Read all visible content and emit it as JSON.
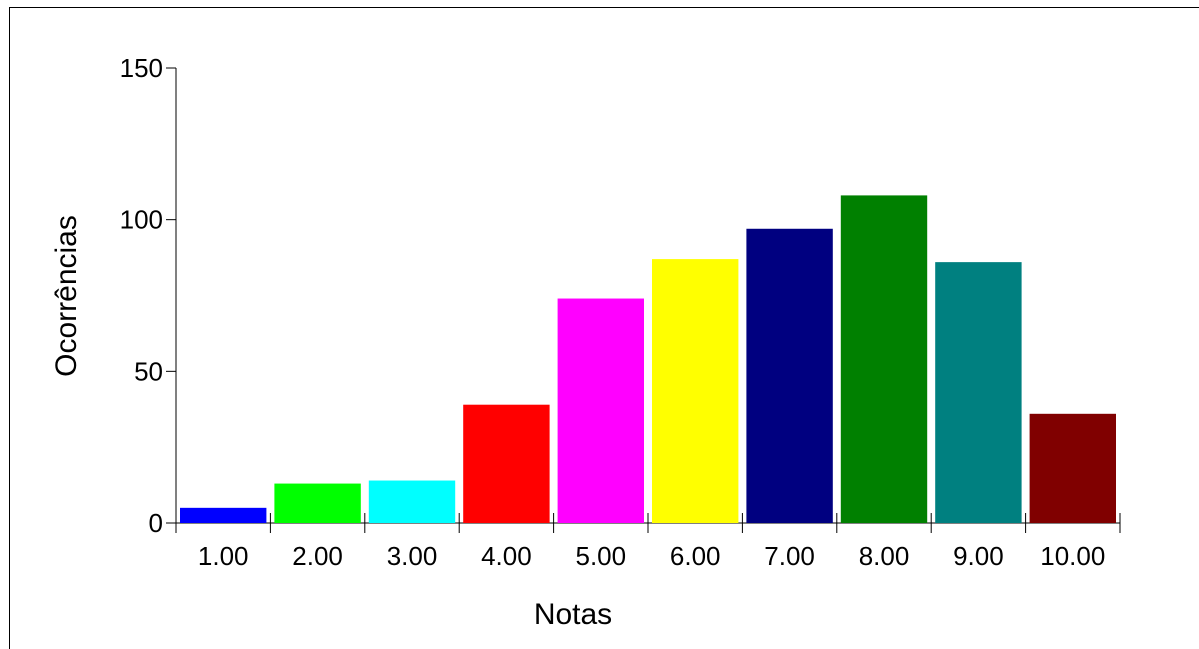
{
  "chart_data": {
    "type": "bar",
    "title": "",
    "xlabel": "Notas",
    "ylabel": "Ocorrências",
    "categories": [
      "1.00",
      "2.00",
      "3.00",
      "4.00",
      "5.00",
      "6.00",
      "7.00",
      "8.00",
      "9.00",
      "10.00"
    ],
    "values": [
      5,
      13,
      14,
      39,
      74,
      87,
      97,
      108,
      86,
      36
    ],
    "colors": [
      "#0000ff",
      "#00ff00",
      "#00ffff",
      "#ff0000",
      "#ff00ff",
      "#ffff00",
      "#000080",
      "#008000",
      "#008080",
      "#800000"
    ],
    "ylim": [
      0,
      150
    ],
    "yticks": [
      0,
      50,
      100,
      150
    ],
    "grid": false,
    "legend": "none"
  }
}
